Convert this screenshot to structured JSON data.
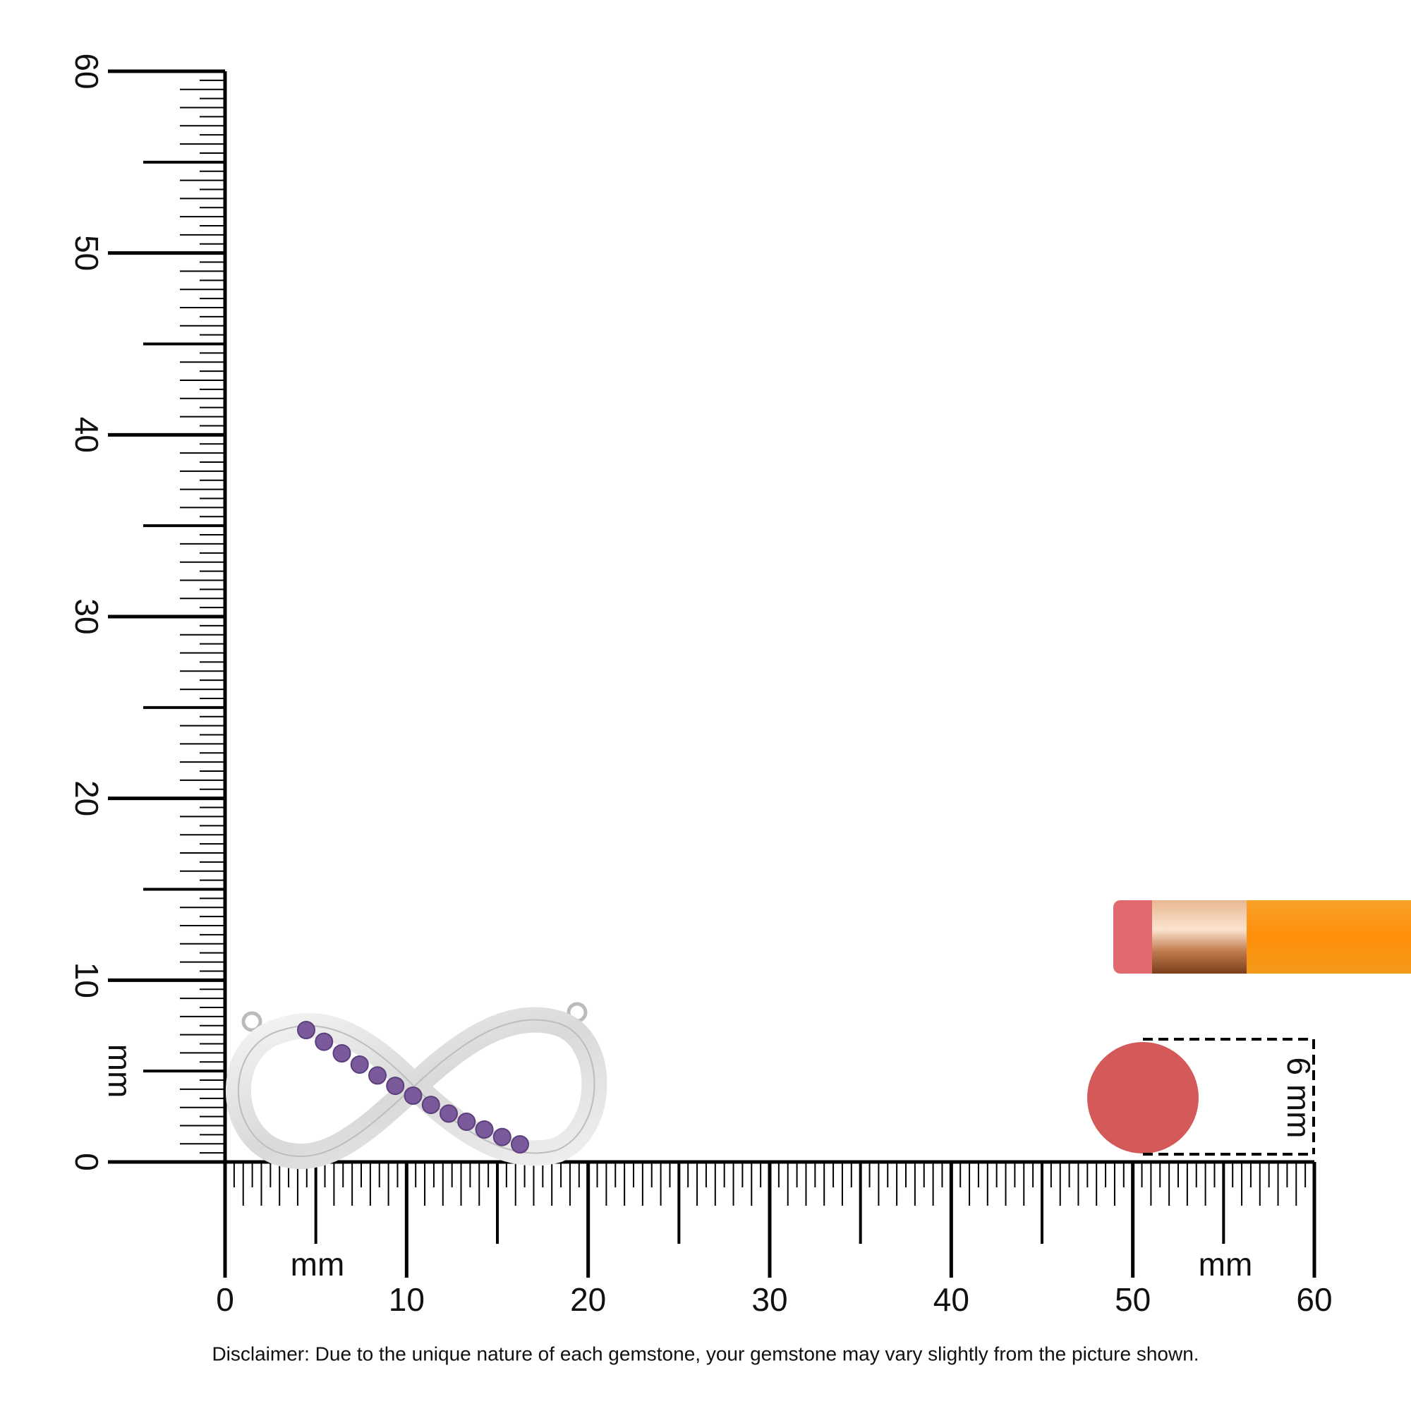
{
  "vertical_ruler": {
    "labels": [
      "0",
      "10",
      "20",
      "30",
      "40",
      "50",
      "60"
    ],
    "unit": "mm"
  },
  "horizontal_ruler": {
    "labels": [
      "0",
      "10",
      "20",
      "30",
      "40",
      "50",
      "60"
    ],
    "units": [
      "mm",
      "mm"
    ]
  },
  "reference": {
    "label": "6 mm"
  },
  "disclaimer": "Disclaimer: Due to the unique nature of each gemstone, your gemstone may vary slightly from the picture shown."
}
